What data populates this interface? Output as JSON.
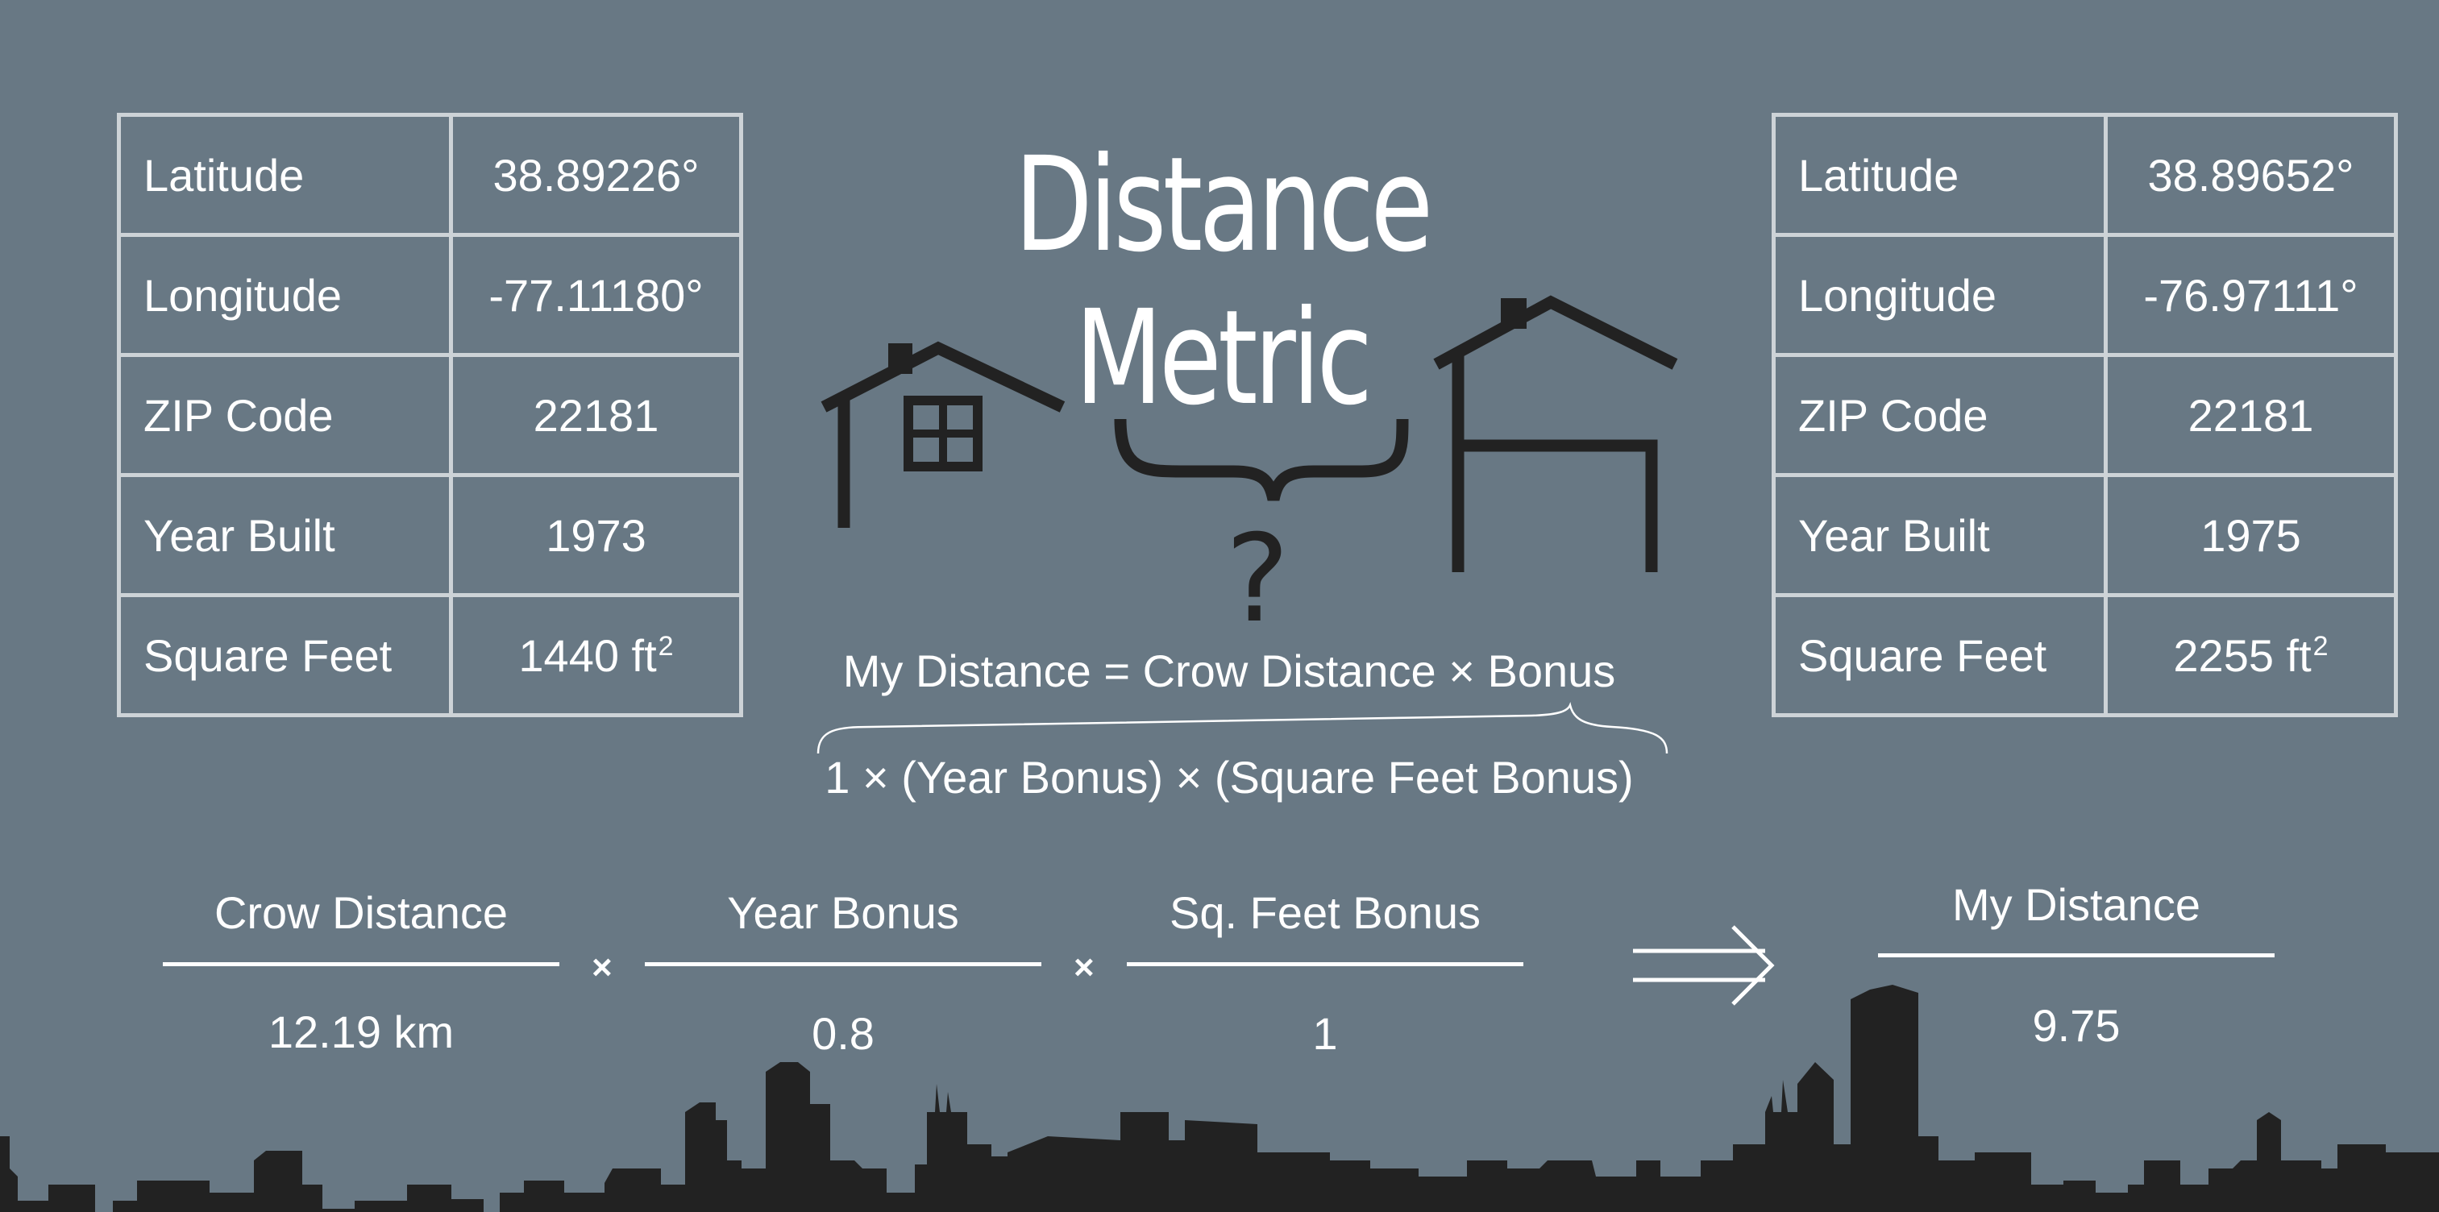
{
  "title": "Distance Metric",
  "left_house": {
    "latitude_label": "Latitude",
    "latitude": "38.89226°",
    "longitude_label": "Longitude",
    "longitude": "-77.11180°",
    "zip_label": "ZIP Code",
    "zip": "22181",
    "year_label": "Year Built",
    "year": "1973",
    "sqft_label": "Square Feet",
    "sqft": "1440 ft",
    "sqft_unit_sup": "2"
  },
  "right_house": {
    "latitude_label": "Latitude",
    "latitude": "38.89652°",
    "longitude_label": "Longitude",
    "longitude": "-76.97111°",
    "zip_label": "ZIP Code",
    "zip": "22181",
    "year_label": "Year Built",
    "year": "1975",
    "sqft_label": "Square Feet",
    "sqft": "2255 ft",
    "sqft_unit_sup": "2"
  },
  "question_mark": "?",
  "formula": {
    "main": "My Distance = Crow Distance × Bonus",
    "bonus_expansion": "1 × (Year Bonus) × (Square Feet Bonus)"
  },
  "calc": {
    "crow_label": "Crow Distance",
    "crow_value": "12.19 km",
    "year_label": "Year Bonus",
    "year_value": "0.8",
    "sqft_label": "Sq. Feet Bonus",
    "sqft_value": "1",
    "times": "×",
    "result_label": "My Distance",
    "result_value": "9.75"
  },
  "colors": {
    "background": "#687884",
    "ink": "#222222",
    "grid": "#cdd3d7"
  }
}
